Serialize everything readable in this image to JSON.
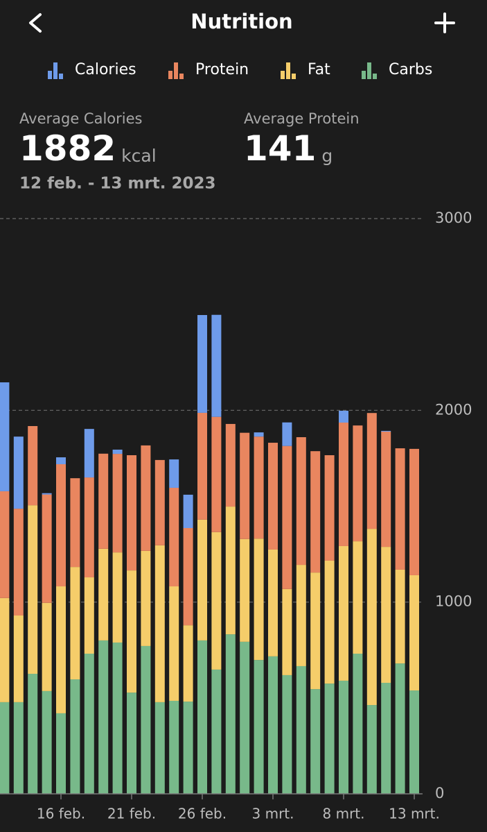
{
  "header": {
    "title": "Nutrition"
  },
  "stats": [
    {
      "label": "Average Calories",
      "value": "1882",
      "unit": "kcal"
    },
    {
      "label": "Average Protein",
      "value": "141",
      "unit": "g"
    }
  ],
  "date_range": "12 feb. - 13 mrt. 2023",
  "chart_data": {
    "type": "stacked-bar",
    "categories": [
      null,
      null,
      null,
      null,
      "16 feb.",
      null,
      null,
      null,
      null,
      "21 feb.",
      null,
      null,
      null,
      null,
      "26 feb.",
      null,
      null,
      null,
      null,
      "3 mrt.",
      null,
      null,
      null,
      null,
      "8 mrt.",
      null,
      null,
      null,
      null,
      "13 mrt."
    ],
    "series": [
      {
        "name": "Calories",
        "color": "#6e9bea",
        "values": [
          568,
          376,
          0,
          7,
          36,
          0,
          253,
          0,
          22,
          0,
          0,
          0,
          148,
          174,
          510,
          532,
          0,
          0,
          22,
          0,
          123,
          0,
          0,
          0,
          62,
          0,
          0,
          4,
          0,
          0
        ]
      },
      {
        "name": "Protein",
        "color": "#e9865f",
        "values": [
          557,
          557,
          413,
          565,
          637,
          463,
          521,
          496,
          514,
          601,
          550,
          445,
          514,
          507,
          557,
          601,
          431,
          554,
          532,
          557,
          746,
          666,
          633,
          550,
          644,
          604,
          604,
          601,
          633,
          659
        ]
      },
      {
        "name": "Fat",
        "color": "#f5cd6a",
        "values": [
          543,
          452,
          879,
          460,
          662,
          586,
          398,
          478,
          470,
          637,
          496,
          818,
          597,
          398,
          630,
          717,
          666,
          536,
          633,
          557,
          449,
          528,
          608,
          641,
          702,
          586,
          919,
          709,
          489,
          601
        ]
      },
      {
        "name": "Carbs",
        "color": "#78b98a",
        "values": [
          478,
          478,
          626,
          536,
          420,
          597,
          731,
          800,
          789,
          528,
          771,
          478,
          485,
          481,
          800,
          648,
          832,
          793,
          698,
          717,
          619,
          666,
          546,
          575,
          590,
          731,
          463,
          579,
          680,
          539
        ]
      }
    ],
    "ylim": [
      0,
      3000
    ],
    "yticks": [
      0,
      1000,
      2000,
      3000
    ],
    "grid": true
  }
}
